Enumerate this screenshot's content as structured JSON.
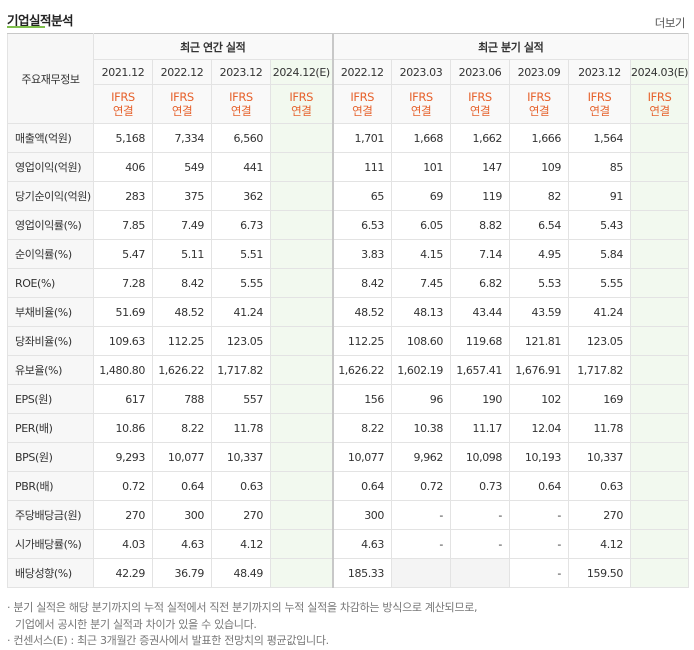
{
  "section": {
    "title": "기업실적분석",
    "more_label": "더보기"
  },
  "table": {
    "row_header_label": "주요재무정보",
    "annual_group": "최근 연간 실적",
    "quarter_group": "최근 분기 실적",
    "annual_periods": [
      "2021.12",
      "2022.12",
      "2023.12",
      "2024.12(E)"
    ],
    "quarter_periods": [
      "2022.12",
      "2023.03",
      "2023.06",
      "2023.09",
      "2023.12",
      "2024.03(E)"
    ],
    "basis_line1": "IFRS",
    "basis_line2": "연결",
    "rows": [
      {
        "label": "매출액(억원)",
        "annual": [
          "5,168",
          "7,334",
          "6,560",
          ""
        ],
        "quarter": [
          "1,701",
          "1,668",
          "1,662",
          "1,666",
          "1,564",
          ""
        ]
      },
      {
        "label": "영업이익(억원)",
        "annual": [
          "406",
          "549",
          "441",
          ""
        ],
        "quarter": [
          "111",
          "101",
          "147",
          "109",
          "85",
          ""
        ]
      },
      {
        "label": "당기순이익(억원)",
        "annual": [
          "283",
          "375",
          "362",
          ""
        ],
        "quarter": [
          "65",
          "69",
          "119",
          "82",
          "91",
          ""
        ]
      },
      {
        "label": "영업이익률(%)",
        "annual": [
          "7.85",
          "7.49",
          "6.73",
          ""
        ],
        "quarter": [
          "6.53",
          "6.05",
          "8.82",
          "6.54",
          "5.43",
          ""
        ]
      },
      {
        "label": "순이익률(%)",
        "annual": [
          "5.47",
          "5.11",
          "5.51",
          ""
        ],
        "quarter": [
          "3.83",
          "4.15",
          "7.14",
          "4.95",
          "5.84",
          ""
        ]
      },
      {
        "label": "ROE(%)",
        "annual": [
          "7.28",
          "8.42",
          "5.55",
          ""
        ],
        "quarter": [
          "8.42",
          "7.45",
          "6.82",
          "5.53",
          "5.55",
          ""
        ]
      },
      {
        "label": "부채비율(%)",
        "annual": [
          "51.69",
          "48.52",
          "41.24",
          ""
        ],
        "quarter": [
          "48.52",
          "48.13",
          "43.44",
          "43.59",
          "41.24",
          ""
        ]
      },
      {
        "label": "당좌비율(%)",
        "annual": [
          "109.63",
          "112.25",
          "123.05",
          ""
        ],
        "quarter": [
          "112.25",
          "108.60",
          "119.68",
          "121.81",
          "123.05",
          ""
        ]
      },
      {
        "label": "유보율(%)",
        "annual": [
          "1,480.80",
          "1,626.22",
          "1,717.82",
          ""
        ],
        "quarter": [
          "1,626.22",
          "1,602.19",
          "1,657.41",
          "1,676.91",
          "1,717.82",
          ""
        ]
      },
      {
        "label": "EPS(원)",
        "annual": [
          "617",
          "788",
          "557",
          ""
        ],
        "quarter": [
          "156",
          "96",
          "190",
          "102",
          "169",
          ""
        ]
      },
      {
        "label": "PER(배)",
        "annual": [
          "10.86",
          "8.22",
          "11.78",
          ""
        ],
        "quarter": [
          "8.22",
          "10.38",
          "11.17",
          "12.04",
          "11.78",
          ""
        ]
      },
      {
        "label": "BPS(원)",
        "annual": [
          "9,293",
          "10,077",
          "10,337",
          ""
        ],
        "quarter": [
          "10,077",
          "9,962",
          "10,098",
          "10,193",
          "10,337",
          ""
        ]
      },
      {
        "label": "PBR(배)",
        "annual": [
          "0.72",
          "0.64",
          "0.63",
          ""
        ],
        "quarter": [
          "0.64",
          "0.72",
          "0.73",
          "0.64",
          "0.63",
          ""
        ]
      },
      {
        "label": "주당배당금(원)",
        "annual": [
          "270",
          "300",
          "270",
          ""
        ],
        "quarter": [
          "300",
          "-",
          "-",
          "-",
          "270",
          ""
        ]
      },
      {
        "label": "시가배당률(%)",
        "annual": [
          "4.03",
          "4.63",
          "4.12",
          ""
        ],
        "quarter": [
          "4.63",
          "-",
          "-",
          "-",
          "4.12",
          ""
        ]
      },
      {
        "label": "배당성향(%)",
        "annual": [
          "42.29",
          "36.79",
          "48.49",
          ""
        ],
        "quarter": [
          "185.33",
          "",
          "",
          "-",
          "159.50",
          ""
        ]
      }
    ]
  },
  "notes": {
    "line1": "· 분기 실적은 해당 분기까지의 누적 실적에서 직전 분기까지의 누적 실적을 차감하는 방식으로 계산되므로,",
    "line2": "기업에서 공시한 분기 실적과 차이가 있을 수 있습니다.",
    "line3": "· 컨센서스(E) : 최근 3개월간 증권사에서 발표한 전망치의 평균값입니다."
  },
  "colors": {
    "ifrs_text": "#e6622d",
    "estimate_bg": "#f2f9ef",
    "accent_underline": "#7fbf4d"
  }
}
